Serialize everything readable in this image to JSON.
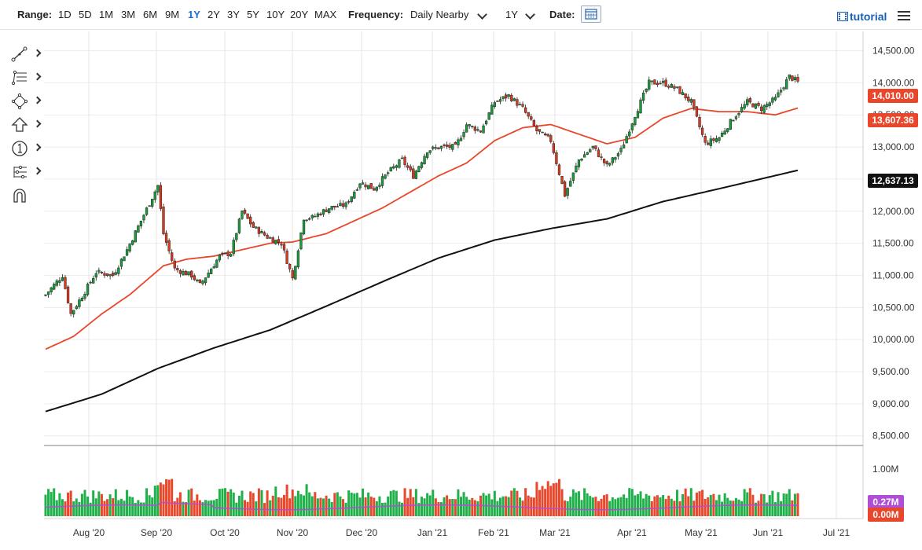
{
  "toolbar": {
    "range_label": "Range:",
    "ranges": [
      "1D",
      "5D",
      "1M",
      "3M",
      "6M",
      "9M",
      "1Y",
      "2Y",
      "3Y",
      "5Y",
      "10Y",
      "20Y",
      "MAX"
    ],
    "active_range": "1Y",
    "frequency_label": "Frequency:",
    "frequency_value": "Daily Nearby",
    "period_value": "1Y",
    "date_label": "Date:",
    "tutorial_label": "tutorial"
  },
  "sidebar": {
    "tools": [
      "line-tool-icon",
      "fib-tool-icon",
      "shape-tool-icon",
      "arrow-up-icon",
      "number-one-icon",
      "pattern-tool-icon",
      "magnet-icon"
    ]
  },
  "chart_data": {
    "type": "candlestick",
    "x_ticks": [
      "Aug '20",
      "Sep '20",
      "Oct '20",
      "Nov '20",
      "Dec '20",
      "Jan '21",
      "Feb '21",
      "Mar '21",
      "Apr '21",
      "May '21",
      "Jun '21",
      "Jul '21"
    ],
    "y_ticks": [
      "14,500.00",
      "14,000.00",
      "13,500.00",
      "13,000.00",
      "12,500.00",
      "12,000.00",
      "11,500.00",
      "11,000.00",
      "10,500.00",
      "10,000.00",
      "9,500.00",
      "9,000.00",
      "8,500.00"
    ],
    "ylim": [
      8350,
      14800
    ],
    "price_tags": [
      {
        "label": "14,010.00",
        "color": "#e8472b"
      },
      {
        "label": "13,607.36",
        "color": "#e8472b"
      },
      {
        "label": "12,637.13",
        "color": "#111111"
      }
    ],
    "volume_ticks": [
      "1.00M"
    ],
    "volume_tags": [
      {
        "label": "0.27M",
        "color": "#b04fd6"
      },
      {
        "label": "0.00M",
        "color": "#e8472b"
      }
    ],
    "close_anchors": [
      [
        0,
        10700
      ],
      [
        6,
        11000
      ],
      [
        9,
        10400
      ],
      [
        14,
        10750
      ],
      [
        18,
        11050
      ],
      [
        24,
        11000
      ],
      [
        29,
        11400
      ],
      [
        34,
        11850
      ],
      [
        40,
        12400
      ],
      [
        42,
        11650
      ],
      [
        46,
        11100
      ],
      [
        52,
        11000
      ],
      [
        55,
        10850
      ],
      [
        62,
        11300
      ],
      [
        66,
        11350
      ],
      [
        70,
        12000
      ],
      [
        74,
        11750
      ],
      [
        79,
        11600
      ],
      [
        84,
        11500
      ],
      [
        88,
        10950
      ],
      [
        92,
        11900
      ],
      [
        95,
        11900
      ],
      [
        101,
        12050
      ],
      [
        107,
        12100
      ],
      [
        112,
        12450
      ],
      [
        117,
        12350
      ],
      [
        122,
        12600
      ],
      [
        127,
        12800
      ],
      [
        131,
        12550
      ],
      [
        136,
        12950
      ],
      [
        141,
        13000
      ],
      [
        146,
        13000
      ],
      [
        150,
        13350
      ],
      [
        155,
        13250
      ],
      [
        160,
        13700
      ],
      [
        165,
        13800
      ],
      [
        170,
        13600
      ],
      [
        175,
        13250
      ],
      [
        180,
        13100
      ],
      [
        185,
        12250
      ],
      [
        190,
        12800
      ],
      [
        195,
        13000
      ],
      [
        200,
        12700
      ],
      [
        205,
        12950
      ],
      [
        210,
        13500
      ],
      [
        215,
        14000
      ],
      [
        220,
        14000
      ],
      [
        225,
        13900
      ],
      [
        230,
        13700
      ],
      [
        235,
        13050
      ],
      [
        240,
        13150
      ],
      [
        245,
        13450
      ],
      [
        250,
        13700
      ],
      [
        255,
        13600
      ],
      [
        260,
        13750
      ],
      [
        265,
        14100
      ],
      [
        268,
        14010
      ]
    ],
    "ma50_anchors": [
      [
        0,
        9850
      ],
      [
        10,
        10050
      ],
      [
        20,
        10400
      ],
      [
        30,
        10700
      ],
      [
        38,
        11000
      ],
      [
        42,
        11150
      ],
      [
        50,
        11250
      ],
      [
        60,
        11300
      ],
      [
        70,
        11400
      ],
      [
        80,
        11500
      ],
      [
        88,
        11520
      ],
      [
        100,
        11650
      ],
      [
        110,
        11850
      ],
      [
        120,
        12050
      ],
      [
        130,
        12300
      ],
      [
        140,
        12550
      ],
      [
        150,
        12750
      ],
      [
        160,
        13100
      ],
      [
        170,
        13300
      ],
      [
        180,
        13350
      ],
      [
        190,
        13200
      ],
      [
        200,
        13050
      ],
      [
        210,
        13150
      ],
      [
        220,
        13450
      ],
      [
        230,
        13600
      ],
      [
        240,
        13550
      ],
      [
        250,
        13550
      ],
      [
        260,
        13500
      ],
      [
        268,
        13607
      ]
    ],
    "ma200_anchors": [
      [
        0,
        8880
      ],
      [
        20,
        9150
      ],
      [
        40,
        9550
      ],
      [
        60,
        9870
      ],
      [
        80,
        10150
      ],
      [
        100,
        10520
      ],
      [
        120,
        10900
      ],
      [
        140,
        11270
      ],
      [
        160,
        11550
      ],
      [
        180,
        11730
      ],
      [
        200,
        11880
      ],
      [
        220,
        12150
      ],
      [
        240,
        12350
      ],
      [
        268,
        12637
      ]
    ]
  }
}
